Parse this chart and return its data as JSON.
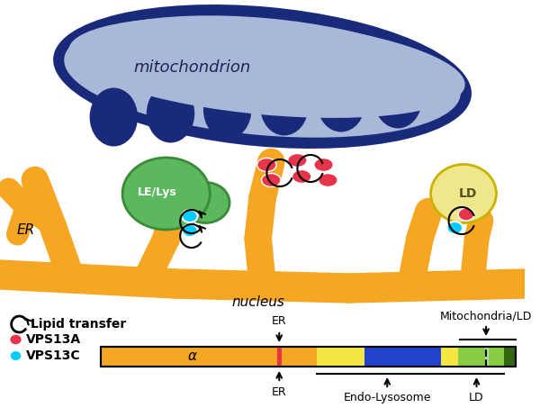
{
  "bg_color": "#ffffff",
  "mito_color_light": "#a8b8d8",
  "mito_color_dark": "#1a2a7a",
  "er_color": "#f5a623",
  "er_outline": "#d4881a",
  "le_lys_color": "#5cb85c",
  "le_lys_outline": "#3a8a3a",
  "ld_color": "#f0e68c",
  "ld_outline": "#c8b400",
  "cyan_circle": "#00ccff",
  "red_oval": "#e8344a",
  "bar_orange": "#f5a623",
  "bar_red": "#e8344a",
  "bar_yellow": "#f5e642",
  "bar_blue": "#2244cc",
  "bar_green_light": "#88cc44",
  "bar_green_dark": "#336611",
  "title_text": "mitochondrion",
  "le_lys_text": "LE/Lys",
  "ld_text": "LD",
  "er_text": "ER",
  "nucleus_text": "nucleus",
  "lipid_text": "Lipid transfer",
  "vps13a_text": "VPS13A",
  "vps13c_text": "VPS13C",
  "alpha_text": "α",
  "er_label": "ER",
  "er_label2": "ER",
  "endo_lyso_label": "Endo-Lysosome",
  "ld_label": "LD",
  "mito_ld_label": "Mitochondria/LD"
}
